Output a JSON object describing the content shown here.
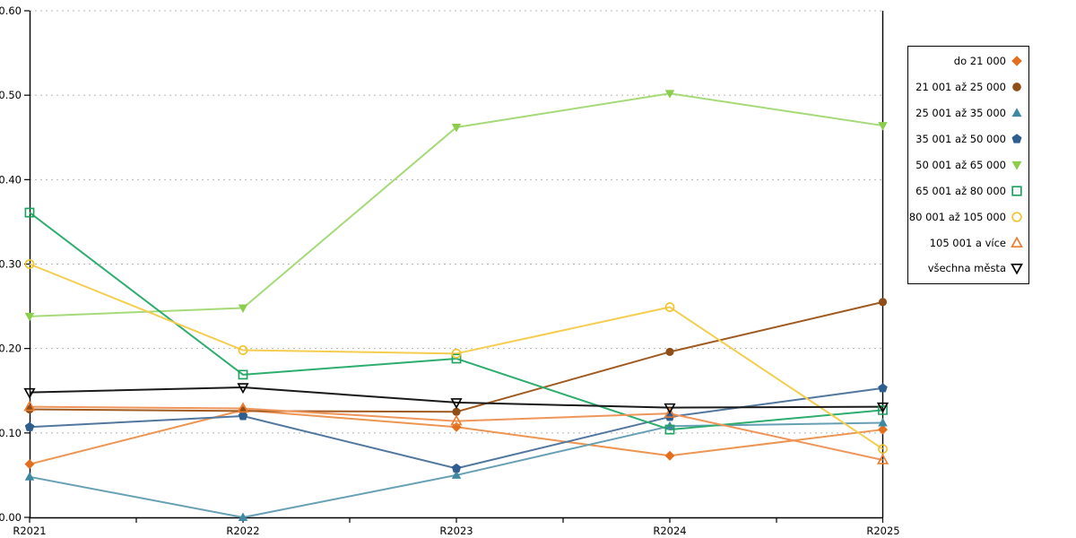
{
  "chart_data": {
    "type": "line",
    "title": "",
    "xlabel": "",
    "ylabel": "",
    "categories": [
      "R2021",
      "R2022",
      "R2023",
      "R2024",
      "R2025"
    ],
    "ylim": [
      0.0,
      0.6
    ],
    "ytick_step": 0.1,
    "ytick_labels": [
      "0.00",
      "0.10",
      "0.20",
      "0.30",
      "0.40",
      "0.50",
      "0.60"
    ],
    "grid": "horizontal dotted gridlines at each 0.10",
    "legend_position": "right, boxed, markers on right of labels",
    "axis_color": "#000000",
    "gridline_color": "#b5b5b5",
    "series": [
      {
        "name": "do 21 000",
        "marker": "diamond",
        "style": "filled",
        "color": "#E36F1E",
        "line_color": "#ED9552",
        "values": [
          0.063,
          0.127,
          0.107,
          0.073,
          0.104
        ]
      },
      {
        "name": "21 001 až 25 000",
        "marker": "circle",
        "style": "filled",
        "color": "#8F4D18",
        "line_color": "#A05A20",
        "values": [
          0.128,
          0.126,
          0.125,
          0.196,
          0.255
        ]
      },
      {
        "name": "25 001 až 35 000",
        "marker": "triangle-up",
        "style": "filled",
        "color": "#3F89A3",
        "line_color": "#67A0B5",
        "values": [
          0.048,
          0.0,
          0.05,
          0.108,
          0.112
        ]
      },
      {
        "name": "35 001 až 50 000",
        "marker": "pentagon",
        "style": "filled",
        "color": "#2E5D90",
        "line_color": "#52779F",
        "values": [
          0.107,
          0.12,
          0.058,
          0.119,
          0.153
        ]
      },
      {
        "name": "50 001 až 65 000",
        "marker": "triangle-down",
        "style": "filled",
        "color": "#8CCE4B",
        "line_color": "#A6DA79",
        "values": [
          0.238,
          0.248,
          0.462,
          0.502,
          0.464
        ]
      },
      {
        "name": "65 001 až 80 000",
        "marker": "square",
        "style": "open",
        "color": "#1BA25C",
        "line_color": "#2EAE6E",
        "values": [
          0.361,
          0.169,
          0.188,
          0.104,
          0.127
        ]
      },
      {
        "name": "80 001 až 105 000",
        "marker": "circle",
        "style": "open",
        "color": "#F3C228",
        "line_color": "#F5CD4F",
        "values": [
          0.3,
          0.198,
          0.194,
          0.249,
          0.081
        ]
      },
      {
        "name": "105 001 a více",
        "marker": "triangle-up",
        "style": "open",
        "color": "#EC7C30",
        "line_color": "#F0955A",
        "values": [
          0.131,
          0.129,
          0.114,
          0.123,
          0.068
        ]
      },
      {
        "name": "všechna města",
        "marker": "triangle-down",
        "style": "open",
        "color": "#000000",
        "line_color": "#1A1A1A",
        "values": [
          0.148,
          0.154,
          0.136,
          0.13,
          0.131
        ]
      }
    ]
  }
}
